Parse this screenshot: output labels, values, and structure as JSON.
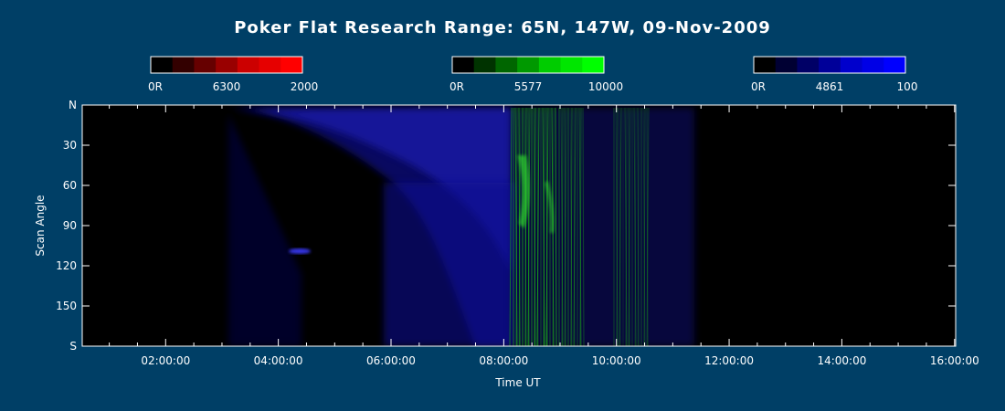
{
  "chart_data": {
    "type": "heatmap",
    "title": "Poker Flat Research Range: 65N, 147W, 09-Nov-2009",
    "xlabel": "Time UT",
    "ylabel": "Scan Angle",
    "x_ticks": [
      "02:00:00",
      "04:00:00",
      "06:00:00",
      "08:00:00",
      "10:00:00",
      "12:00:00",
      "14:00:00",
      "16:00:00"
    ],
    "y_ticks": [
      "N",
      "30",
      "60",
      "90",
      "120",
      "150",
      "S"
    ],
    "y_tick_values": [
      0,
      30,
      60,
      90,
      120,
      150,
      180
    ],
    "colorbars": [
      {
        "name": "6300",
        "min_label": "0R",
        "center_label": "6300",
        "max_label": "2000",
        "color": "#ff0000",
        "steps": [
          "#000000",
          "#330000",
          "#660000",
          "#990000",
          "#cc0000",
          "#e60000",
          "#ff0000"
        ]
      },
      {
        "name": "5577",
        "min_label": "0R",
        "center_label": "5577",
        "max_label": "10000",
        "color": "#00ff00",
        "steps": [
          "#000000",
          "#003300",
          "#006600",
          "#009900",
          "#00cc00",
          "#00e600",
          "#00ff00"
        ]
      },
      {
        "name": "4861",
        "min_label": "0R",
        "center_label": "4861",
        "max_label": "100",
        "color": "#0000ff",
        "steps": [
          "#000000",
          "#000033",
          "#000066",
          "#000099",
          "#0000cc",
          "#0000e6",
          "#0000ff"
        ]
      }
    ],
    "background_color": "#003f66",
    "plot_background": "#000000"
  }
}
